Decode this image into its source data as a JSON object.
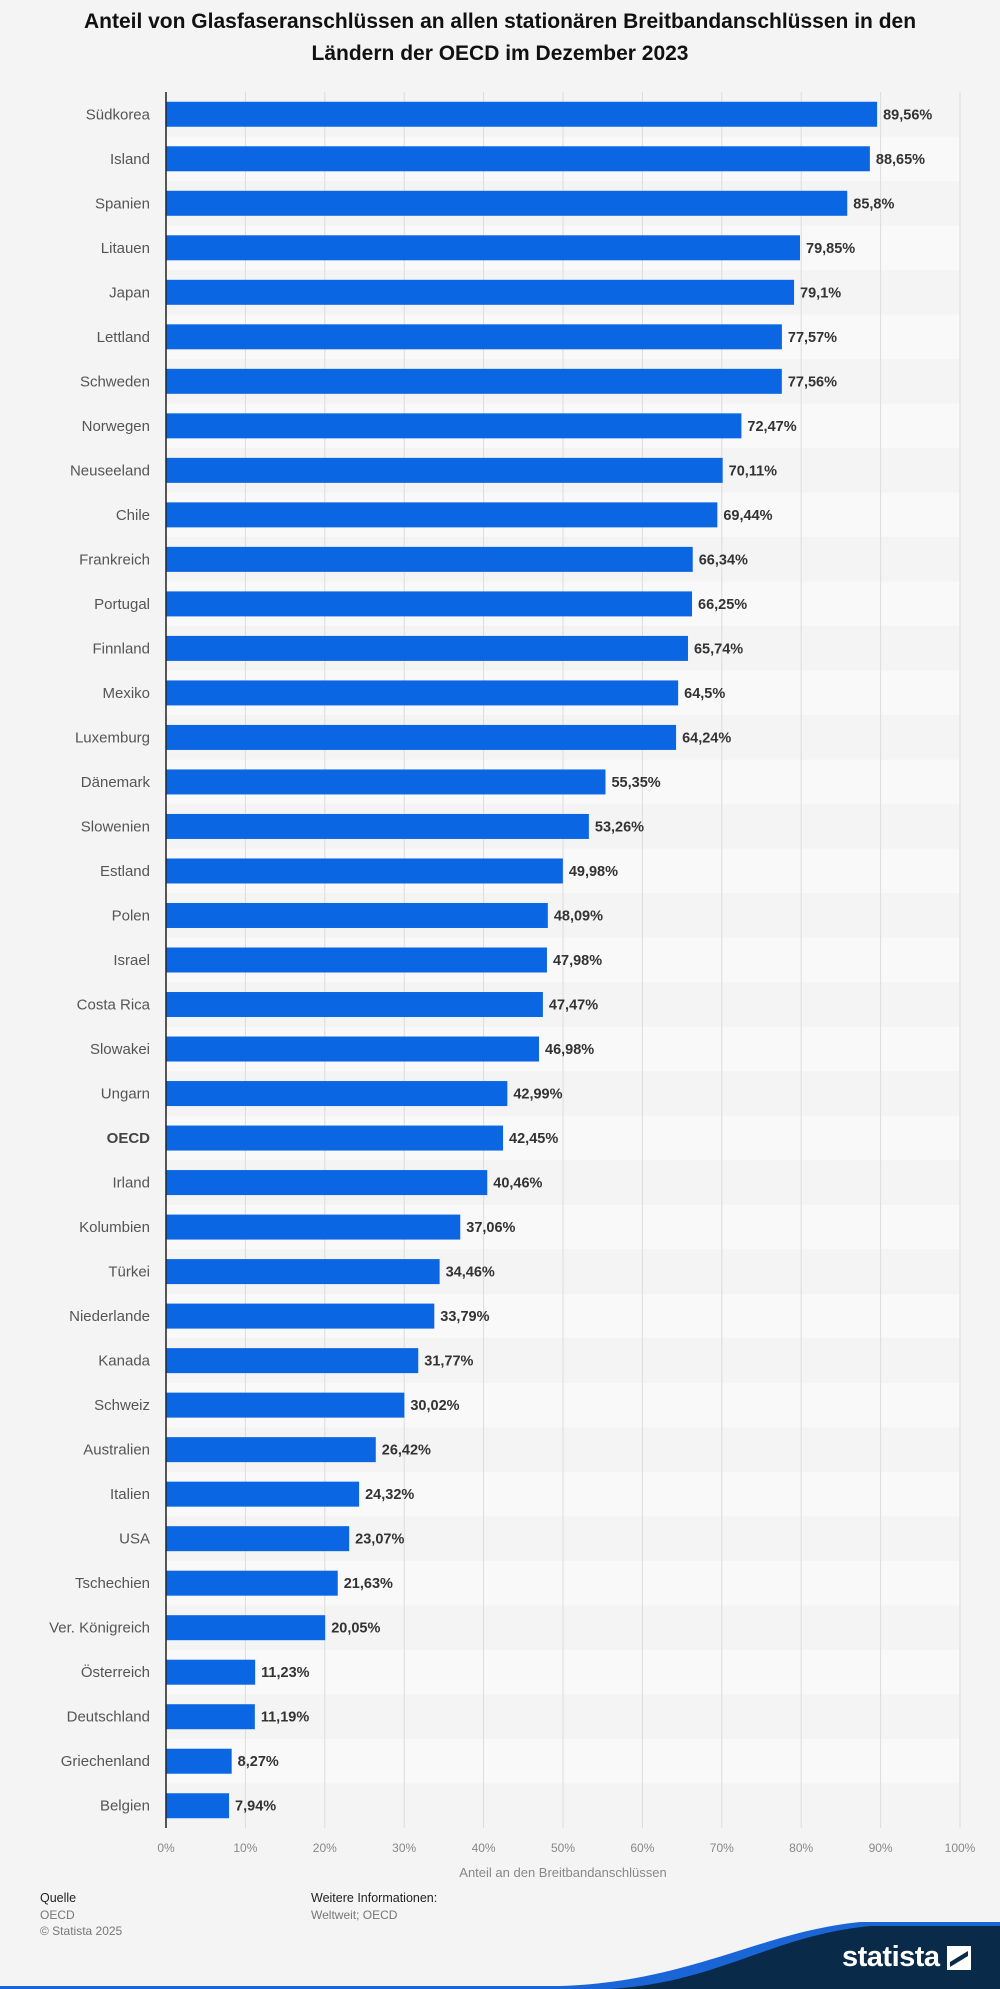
{
  "title": "Anteil von Glasfaseranschlüssen an allen stationären Breitbandanschlüssen in den Ländern der OECD im Dezember 2023",
  "colors": {
    "bar": "#0b66e4",
    "background": "#f4f4f4",
    "brand_dark": "#0a2a4a"
  },
  "chart_data": {
    "type": "bar",
    "orientation": "horizontal",
    "categories": [
      "Südkorea",
      "Island",
      "Spanien",
      "Litauen",
      "Japan",
      "Lettland",
      "Schweden",
      "Norwegen",
      "Neuseeland",
      "Chile",
      "Frankreich",
      "Portugal",
      "Finnland",
      "Mexiko",
      "Luxemburg",
      "Dänemark",
      "Slowenien",
      "Estland",
      "Polen",
      "Israel",
      "Costa Rica",
      "Slowakei",
      "Ungarn",
      "OECD",
      "Irland",
      "Kolumbien",
      "Türkei",
      "Niederlande",
      "Kanada",
      "Schweiz",
      "Australien",
      "Italien",
      "USA",
      "Tschechien",
      "Ver. Königreich",
      "Österreich",
      "Deutschland",
      "Griechenland",
      "Belgien"
    ],
    "values": [
      89.56,
      88.65,
      85.8,
      79.85,
      79.1,
      77.57,
      77.56,
      72.47,
      70.11,
      69.44,
      66.34,
      66.25,
      65.74,
      64.5,
      64.24,
      55.35,
      53.26,
      49.98,
      48.09,
      47.98,
      47.47,
      46.98,
      42.99,
      42.45,
      40.46,
      37.06,
      34.46,
      33.79,
      31.77,
      30.02,
      26.42,
      24.32,
      23.07,
      21.63,
      20.05,
      11.23,
      11.19,
      8.27,
      7.94
    ],
    "value_labels": [
      "89,56%",
      "88,65%",
      "85,8%",
      "79,85%",
      "79,1%",
      "77,57%",
      "77,56%",
      "72,47%",
      "70,11%",
      "69,44%",
      "66,34%",
      "66,25%",
      "65,74%",
      "64,5%",
      "64,24%",
      "55,35%",
      "53,26%",
      "49,98%",
      "48,09%",
      "47,98%",
      "47,47%",
      "46,98%",
      "42,99%",
      "42,45%",
      "40,46%",
      "37,06%",
      "34,46%",
      "33,79%",
      "31,77%",
      "30,02%",
      "26,42%",
      "24,32%",
      "23,07%",
      "21,63%",
      "20,05%",
      "11,23%",
      "11,19%",
      "8,27%",
      "7,94%"
    ],
    "bold_category": "OECD",
    "xlabel": "Anteil an den Breitbandanschlüssen",
    "xlim": [
      0,
      100
    ],
    "xticks": [
      "0%",
      "10%",
      "20%",
      "30%",
      "40%",
      "50%",
      "60%",
      "70%",
      "80%",
      "90%",
      "100%"
    ],
    "grid": true
  },
  "footer": {
    "source_label": "Quelle",
    "source_value": "OECD",
    "copyright": "© Statista 2025",
    "info_label": "Weitere Informationen:",
    "info_value": "Weltweit; OECD"
  },
  "brand": {
    "name": "statista"
  }
}
